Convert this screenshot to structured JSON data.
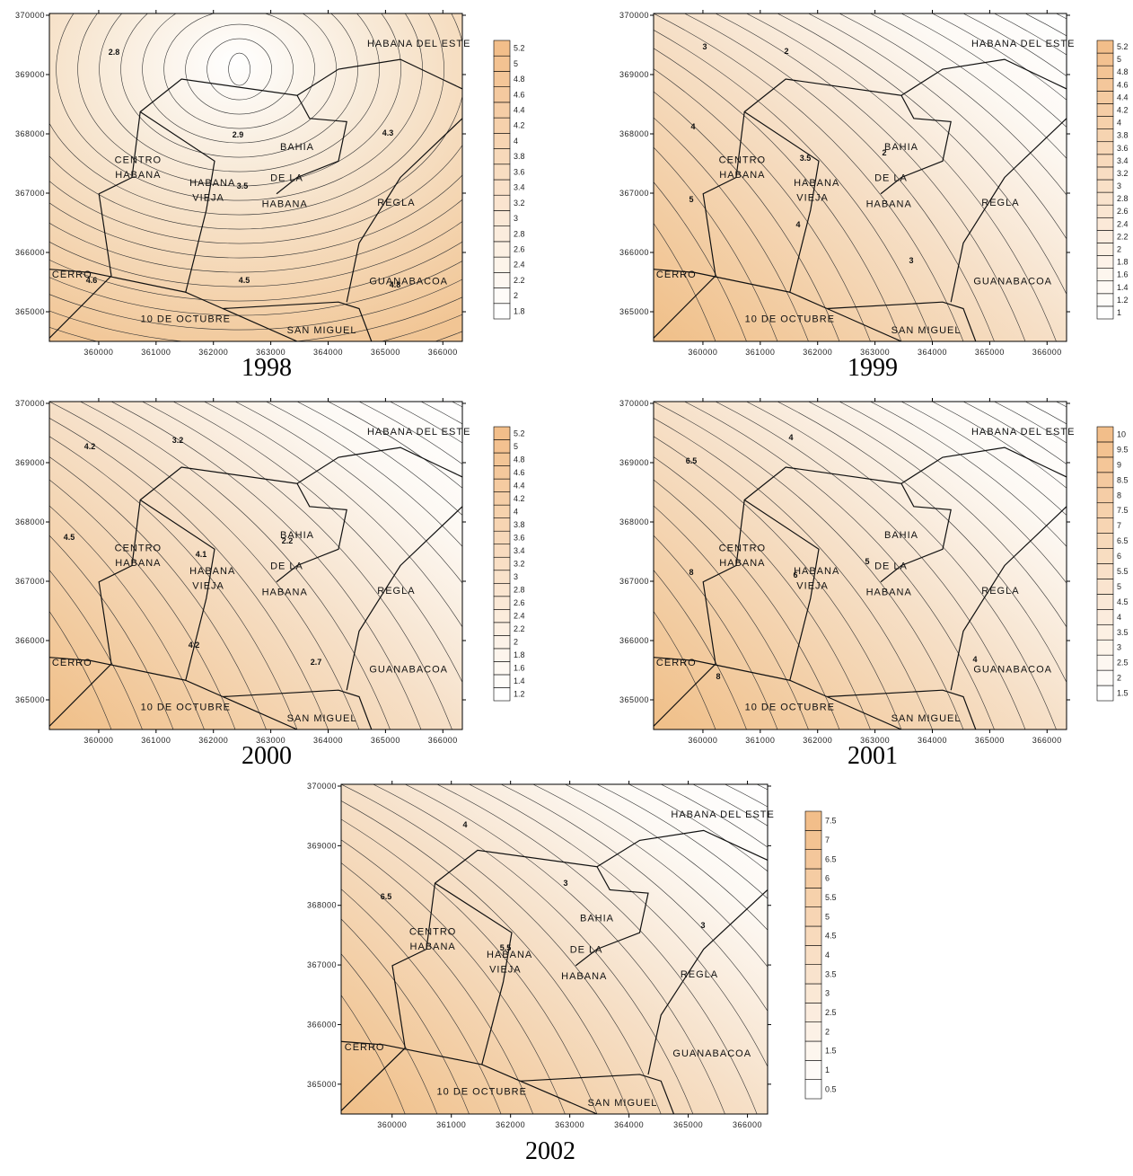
{
  "maps": [
    {
      "year": "1998",
      "xlim": [
        359140,
        366340
      ],
      "ylim": [
        364500,
        370030
      ],
      "xticks": [
        360000,
        361000,
        362000,
        363000,
        364000,
        365000,
        366000
      ],
      "yticks": [
        365000,
        366000,
        367000,
        368000,
        369000,
        370000
      ],
      "legend_levels": [
        1.8,
        2,
        2.2,
        2.4,
        2.6,
        2.8,
        3,
        3.2,
        3.4,
        3.6,
        3.8,
        4,
        4.2,
        4.4,
        4.6,
        4.8,
        5,
        5.2
      ],
      "contour_labels": [
        2.8,
        2.9,
        4.3,
        3.5,
        4.5,
        4.6,
        4.8
      ]
    },
    {
      "year": "1999",
      "xlim": [
        359140,
        366340
      ],
      "ylim": [
        364500,
        370030
      ],
      "xticks": [
        360000,
        361000,
        362000,
        363000,
        364000,
        365000,
        366000
      ],
      "yticks": [
        365000,
        366000,
        367000,
        368000,
        369000,
        370000
      ],
      "legend_levels": [
        1,
        1.2,
        1.4,
        1.6,
        1.8,
        2,
        2.2,
        2.4,
        2.6,
        2.8,
        3,
        3.2,
        3.4,
        3.6,
        3.8,
        4,
        4.2,
        4.4,
        4.6,
        4.8,
        5,
        5.2
      ],
      "contour_labels": [
        3,
        2,
        4,
        3.5,
        2,
        5,
        4,
        3
      ]
    },
    {
      "year": "2000",
      "xlim": [
        359140,
        366340
      ],
      "ylim": [
        364500,
        370030
      ],
      "xticks": [
        360000,
        361000,
        362000,
        363000,
        364000,
        365000,
        366000
      ],
      "yticks": [
        365000,
        366000,
        367000,
        368000,
        369000,
        370000
      ],
      "legend_levels": [
        1.2,
        1.4,
        1.6,
        1.8,
        2,
        2.2,
        2.4,
        2.6,
        2.8,
        3,
        3.2,
        3.4,
        3.6,
        3.8,
        4,
        4.2,
        4.4,
        4.6,
        4.8,
        5,
        5.2
      ],
      "contour_labels": [
        4.2,
        3.2,
        4.5,
        4.1,
        2.2,
        4.2,
        2.7
      ]
    },
    {
      "year": "2001",
      "xlim": [
        359140,
        366340
      ],
      "ylim": [
        364500,
        370030
      ],
      "xticks": [
        360000,
        361000,
        362000,
        363000,
        364000,
        365000,
        366000
      ],
      "yticks": [
        365000,
        366000,
        367000,
        368000,
        369000,
        370000
      ],
      "legend_levels": [
        1.5,
        2,
        2.5,
        3,
        3.5,
        4,
        4.5,
        5,
        5.5,
        6,
        6.5,
        7,
        7.5,
        8,
        8.5,
        9,
        9.5,
        10
      ],
      "contour_labels": [
        6.5,
        4,
        8,
        6,
        5,
        8,
        4
      ]
    },
    {
      "year": "2002",
      "xlim": [
        359140,
        366340
      ],
      "ylim": [
        364500,
        370030
      ],
      "xticks": [
        360000,
        361000,
        362000,
        363000,
        364000,
        365000,
        366000
      ],
      "yticks": [
        365000,
        366000,
        367000,
        368000,
        369000,
        370000
      ],
      "legend_levels": [
        0.5,
        1,
        1.5,
        2,
        2.5,
        3,
        3.5,
        4,
        4.5,
        5,
        5.5,
        6,
        6.5,
        7,
        7.5
      ],
      "contour_labels": [
        4,
        6.5,
        3,
        5.5,
        3
      ]
    }
  ],
  "place_labels": [
    "HABANA DEL ESTE",
    "BAHIA",
    "DE LA",
    "HABANA",
    "CENTRO",
    "HABANA",
    "HABANA",
    "VIEJA",
    "REGLA",
    "CERRO",
    "GUANABACOA",
    "10 DE OCTUBRE",
    "SAN MIGUEL"
  ]
}
